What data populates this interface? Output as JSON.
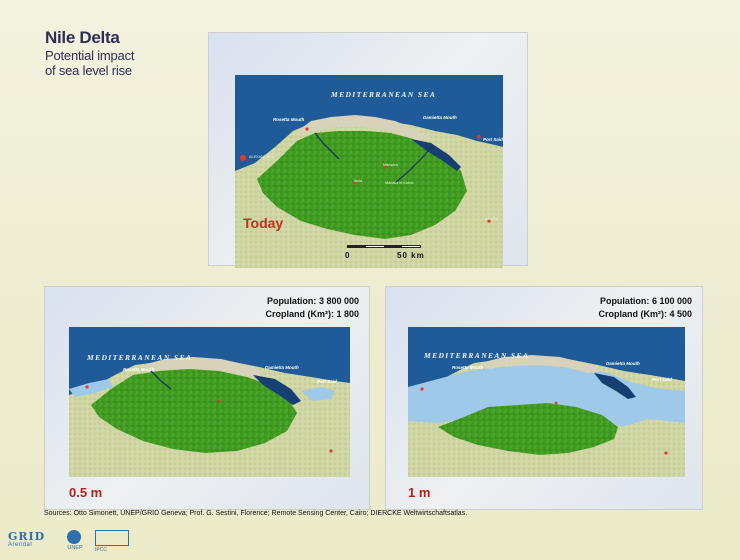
{
  "title": {
    "line1": "Nile Delta",
    "line2": "Potential impact",
    "line3": "of sea level rise"
  },
  "panels": {
    "today": {
      "scenario": "Today",
      "sea": "MEDITERRANEAN SEA",
      "places": {
        "rosetta": "Rosetta Mouth",
        "damietta": "Damietta Mouth",
        "port_said": "Port Said",
        "alexandria": "ALEXANDRIA",
        "mansura": "Mansura",
        "tanta": "Tanta",
        "mahalla": "Mahalla el Kubra",
        "ismailia": "Ismailia"
      },
      "scale": {
        "zero": "0",
        "fifty": "50 km"
      }
    },
    "half": {
      "scenario": "0.5 m",
      "sea": "MEDITERRANEAN SEA",
      "places": {
        "rosetta": "Rosetta Mouth",
        "damietta": "Damietta Mouth",
        "port_said": "Port Said"
      },
      "population_label": "Population:",
      "population_value": "3 800 000",
      "cropland_label": "Cropland (Km²):",
      "cropland_value": "1 800"
    },
    "one": {
      "scenario": "1 m",
      "sea": "MEDITERRANEAN SEA",
      "places": {
        "rosetta": "Rosetta Mouth",
        "damietta": "Damietta Mouth",
        "port_said": "Port Said"
      },
      "population_label": "Population:",
      "population_value": "6 100 000",
      "cropland_label": "Cropland (Km²):",
      "cropland_value": "4 500"
    }
  },
  "sources": "Sources: Otto Simonett, UNEP/GRID Geneva; Prof. G. Sestini, Florence; Remote Sensing Center, Cairo; DIERCKE Weltwirtschaftsatlas.",
  "logos": {
    "grid_line1": "GRID",
    "grid_line2": "Arendal",
    "unep": "UNEP",
    "ipcc": "IPCC"
  },
  "colors": {
    "sea": "#1f5b98",
    "land_green": "#3f9a21",
    "flooded": "#9fc9e8",
    "coast_sand": "#d7d2b9",
    "scenario_red": "#b0231d",
    "title_navy": "#2b2f55"
  }
}
